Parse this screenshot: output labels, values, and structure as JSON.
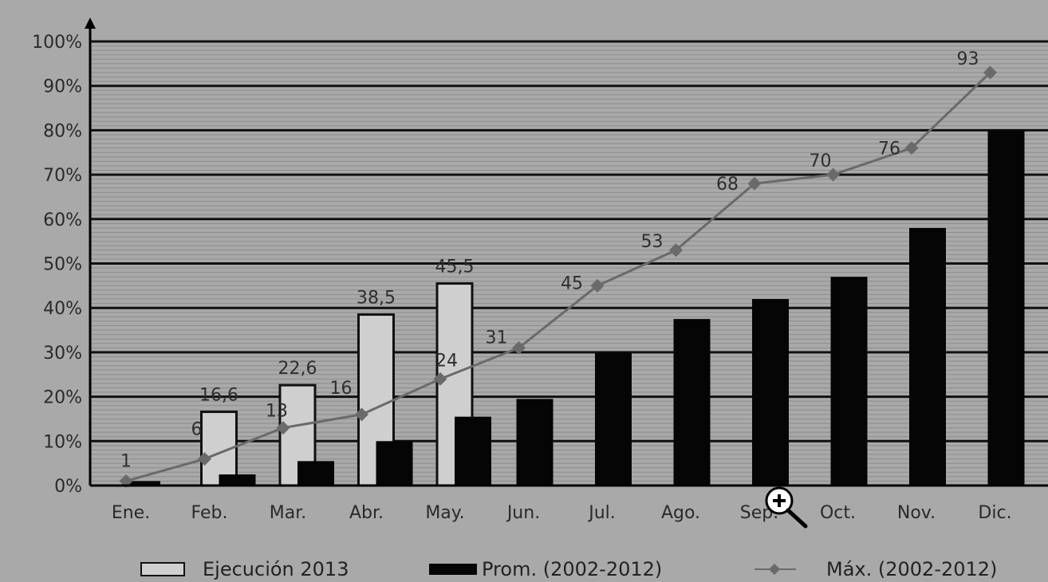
{
  "chart_data": {
    "type": "bar",
    "categories": [
      "Ene.",
      "Feb.",
      "Mar.",
      "Abr.",
      "May.",
      "Jun.",
      "Jul.",
      "Ago.",
      "Sep.",
      "Oct.",
      "Nov.",
      "Dic."
    ],
    "series": [
      {
        "name": "Ejecución 2013",
        "type": "bar",
        "values": [
          null,
          16.6,
          22.6,
          38.5,
          45.5,
          null,
          null,
          null,
          null,
          null,
          null,
          null
        ],
        "labels": [
          "",
          "16,6",
          "22,6",
          "38,5",
          "45,5",
          "",
          "",
          "",
          "",
          "",
          "",
          ""
        ]
      },
      {
        "name": "Prom. (2002-2012)",
        "type": "bar",
        "values": [
          1,
          2.5,
          5.5,
          10,
          15.5,
          19.5,
          30,
          37.5,
          42,
          47,
          58,
          80
        ]
      },
      {
        "name": "Máx. (2002-2012)",
        "type": "line",
        "values": [
          1,
          6,
          13,
          16,
          24,
          31,
          45,
          53,
          68,
          70,
          76,
          93
        ],
        "labels": [
          "1",
          "6",
          "13",
          "16",
          "24",
          "31",
          "45",
          "53",
          "68",
          "70",
          "76",
          "93"
        ]
      }
    ],
    "yticks": [
      "0%",
      "10%",
      "20%",
      "30%",
      "40%",
      "50%",
      "60%",
      "70%",
      "80%",
      "90%",
      "100%"
    ],
    "ylim": [
      0,
      100
    ],
    "grid": true,
    "legend_position": "bottom",
    "colors": {
      "background": "#a9a9a9",
      "ejecucion_fill": "#cfcfcf",
      "prom_fill": "#050505",
      "max_line": "#6a6a6a",
      "major_grid": "#111111",
      "minor_grid": "#8c8c8c"
    }
  },
  "legend": {
    "items": [
      {
        "label": "Ejecución 2013"
      },
      {
        "label": "Prom. (2002-2012)"
      },
      {
        "label": "Máx. (2002-2012)"
      }
    ]
  },
  "cursor": {
    "icon": "zoom-in-icon"
  }
}
